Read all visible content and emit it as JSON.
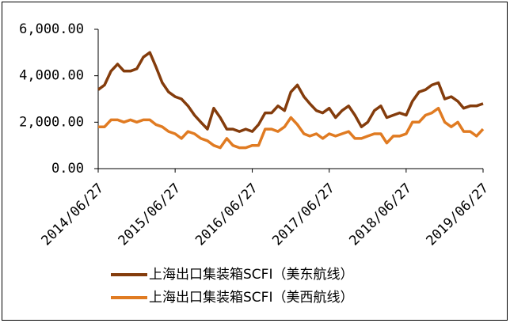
{
  "chart_data": {
    "type": "line",
    "x": [
      "2014/06/27",
      "2014/07/27",
      "2014/08/27",
      "2014/09/27",
      "2014/10/27",
      "2014/11/27",
      "2014/12/27",
      "2015/01/27",
      "2015/02/27",
      "2015/03/27",
      "2015/04/27",
      "2015/05/27",
      "2015/06/27",
      "2015/07/27",
      "2015/08/27",
      "2015/09/27",
      "2015/10/27",
      "2015/11/27",
      "2015/12/27",
      "2016/01/27",
      "2016/02/27",
      "2016/03/27",
      "2016/04/27",
      "2016/05/27",
      "2016/06/27",
      "2016/07/27",
      "2016/08/27",
      "2016/09/27",
      "2016/10/27",
      "2016/11/27",
      "2016/12/27",
      "2017/01/27",
      "2017/02/27",
      "2017/03/27",
      "2017/04/27",
      "2017/05/27",
      "2017/06/27",
      "2017/07/27",
      "2017/08/27",
      "2017/09/27",
      "2017/10/27",
      "2017/11/27",
      "2017/12/27",
      "2018/01/27",
      "2018/02/27",
      "2018/03/27",
      "2018/04/27",
      "2018/05/27",
      "2018/06/27",
      "2018/07/27",
      "2018/08/27",
      "2018/09/27",
      "2018/10/27",
      "2018/11/27",
      "2018/12/27",
      "2019/01/27",
      "2019/02/27",
      "2019/03/27",
      "2019/04/27",
      "2019/05/27",
      "2019/06/27"
    ],
    "series": [
      {
        "name": "上海出口集装箱SCFI（美东航线）",
        "color": "#843c0c",
        "values": [
          3400,
          3600,
          4200,
          4500,
          4200,
          4200,
          4300,
          4800,
          5000,
          4400,
          3700,
          3300,
          3100,
          3000,
          2700,
          2300,
          2000,
          1700,
          2600,
          2200,
          1700,
          1700,
          1600,
          1700,
          1600,
          1900,
          2400,
          2400,
          2700,
          2500,
          3300,
          3600,
          3100,
          2800,
          2500,
          2400,
          2600,
          2200,
          2500,
          2700,
          2300,
          1800,
          2000,
          2500,
          2700,
          2200,
          2300,
          2400,
          2300,
          2900,
          3300,
          3400,
          3600,
          3700,
          3000,
          3100,
          2900,
          2600,
          2700,
          2700,
          2800
        ]
      },
      {
        "name": "上海出口集装箱SCFI（美西航线）",
        "color": "#e07b22",
        "values": [
          1800,
          1800,
          2100,
          2100,
          2000,
          2100,
          2000,
          2100,
          2100,
          1900,
          1800,
          1600,
          1500,
          1300,
          1600,
          1500,
          1300,
          1200,
          1000,
          900,
          1300,
          1000,
          900,
          900,
          1000,
          1000,
          1700,
          1700,
          1600,
          1800,
          2200,
          1900,
          1500,
          1400,
          1500,
          1300,
          1500,
          1400,
          1500,
          1600,
          1300,
          1300,
          1400,
          1500,
          1500,
          1100,
          1400,
          1400,
          1500,
          2000,
          2000,
          2300,
          2400,
          2600,
          2000,
          1800,
          2000,
          1600,
          1600,
          1400,
          1700
        ]
      }
    ],
    "xticks": [
      "2014/06/27",
      "2015/06/27",
      "2016/06/27",
      "2017/06/27",
      "2018/06/27",
      "2019/06/27"
    ],
    "ylim": [
      0,
      6000
    ],
    "yticks": [
      {
        "value": 0,
        "label": "0.00"
      },
      {
        "value": 2000,
        "label": "2,000.00"
      },
      {
        "value": 4000,
        "label": "4,000.00"
      },
      {
        "value": 6000,
        "label": "6,000.00"
      }
    ]
  }
}
